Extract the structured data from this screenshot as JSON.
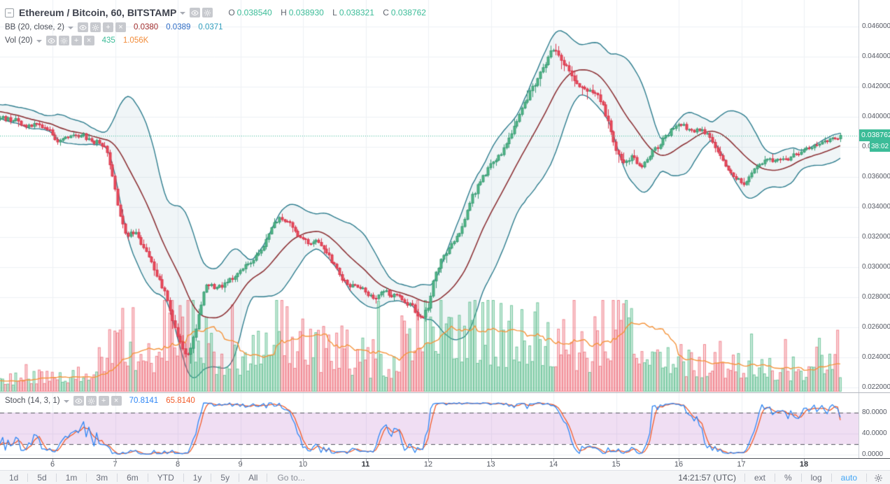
{
  "header": {
    "title": "Ethereum / Bitcoin, 60, BITSTAMP",
    "ohlc": {
      "o_label": "O",
      "o": "0.038540",
      "h_label": "H",
      "h": "0.038930",
      "l_label": "L",
      "l": "0.038321",
      "c_label": "C",
      "c": "0.038762"
    },
    "bb": {
      "name": "BB (20, close, 2)",
      "values": [
        {
          "text": "0.0380",
          "color": "#a02c2c"
        },
        {
          "text": "0.0389",
          "color": "#2d6bc4"
        },
        {
          "text": "0.0371",
          "color": "#2f9dbd"
        }
      ]
    },
    "vol": {
      "name": "Vol (20)",
      "values": [
        {
          "text": "435",
          "color": "#3cbc98"
        },
        {
          "text": "1.056K",
          "color": "#f28c3a"
        }
      ]
    }
  },
  "stoch_header": {
    "name": "Stoch (14, 3, 1)",
    "values": [
      {
        "text": "70.8141",
        "color": "#2e86f5"
      },
      {
        "text": "65.8140",
        "color": "#f25c2a"
      }
    ]
  },
  "axes": {
    "price_labels": [
      {
        "p": 0.046,
        "label": "0.046000"
      },
      {
        "p": 0.044,
        "label": "0.044000"
      },
      {
        "p": 0.042,
        "label": "0.042000"
      },
      {
        "p": 0.04,
        "label": "0.040000"
      },
      {
        "p": 0.038,
        "label": "0.038000"
      },
      {
        "p": 0.036,
        "label": "0.036000"
      },
      {
        "p": 0.034,
        "label": "0.034000"
      },
      {
        "p": 0.032,
        "label": "0.032000"
      },
      {
        "p": 0.03,
        "label": "0.030000"
      },
      {
        "p": 0.028,
        "label": "0.028000"
      },
      {
        "p": 0.026,
        "label": "0.026000"
      },
      {
        "p": 0.024,
        "label": "0.024000"
      },
      {
        "p": 0.022,
        "label": "0.022000"
      }
    ],
    "stoch_labels": [
      {
        "v": 80,
        "label": "80.0000"
      },
      {
        "v": 40,
        "label": "40.0000"
      },
      {
        "v": 0,
        "label": "0.0000"
      }
    ],
    "time_labels": [
      {
        "d": 6,
        "label": "6",
        "bold": false
      },
      {
        "d": 7,
        "label": "7",
        "bold": false
      },
      {
        "d": 8,
        "label": "8",
        "bold": false
      },
      {
        "d": 9,
        "label": "9",
        "bold": false
      },
      {
        "d": 10,
        "label": "10",
        "bold": false
      },
      {
        "d": 11,
        "label": "11",
        "bold": true
      },
      {
        "d": 12,
        "label": "12",
        "bold": false
      },
      {
        "d": 13,
        "label": "13",
        "bold": false
      },
      {
        "d": 14,
        "label": "14",
        "bold": false
      },
      {
        "d": 15,
        "label": "15",
        "bold": false
      },
      {
        "d": 16,
        "label": "16",
        "bold": false
      },
      {
        "d": 17,
        "label": "17",
        "bold": false
      },
      {
        "d": 18,
        "label": "18",
        "bold": true
      }
    ]
  },
  "badges": {
    "last_price": "0.038762",
    "countdown": "38:02"
  },
  "toolbar": {
    "ranges": [
      "1d",
      "5d",
      "1m",
      "3m",
      "6m",
      "YTD",
      "1y",
      "5y",
      "All"
    ],
    "goto": "Go to...",
    "clock": "14:21:57 (UTC)",
    "ext": "ext",
    "percent": "%",
    "log": "log",
    "auto": "auto"
  },
  "colors": {
    "up": "#53b987",
    "up_border": "#3b9b77",
    "down": "#eb4d5c",
    "down_border": "#d8394f",
    "bb_line": "#2f7e8f",
    "bb_fill": "rgba(47,126,143,0.075)",
    "bb_mid": "#8e3438",
    "vol_up_fill": "rgba(83,185,135,0.30)",
    "vol_up_line": "rgba(83,185,135,0.75)",
    "vol_down_fill": "rgba(235,77,92,0.24)",
    "vol_down_line": "rgba(235,77,92,0.62)",
    "vol_ma": "#f5953d",
    "grid": "#eef1f5",
    "price_line": "#3cbc98",
    "stoch_k": "#2e86f5",
    "stoch_d": "#f25c2a",
    "stoch_band": "rgba(186,104,200,0.22)",
    "stoch_dash": "#54575f"
  },
  "chart_data": {
    "type": "candlestick",
    "symbol": "Ethereum / Bitcoin",
    "exchange": "BITSTAMP",
    "interval_minutes": 60,
    "title": "Ethereum / Bitcoin, 60, BITSTAMP",
    "current_bar": {
      "open": 0.03854,
      "high": 0.03893,
      "low": 0.038321,
      "close": 0.038762
    },
    "last_price": 0.038762,
    "bollinger": {
      "length": 20,
      "source": "close",
      "mult": 2,
      "basis": 0.038,
      "upper": 0.0389,
      "lower": 0.0371
    },
    "volume": {
      "current": 435,
      "ma_length": 20,
      "ma_display": "1.056K",
      "ma_value": 1056
    },
    "stochastic": {
      "params": [
        14,
        3,
        1
      ],
      "k": 70.8141,
      "d": 65.814,
      "band": [
        20,
        80
      ]
    },
    "y_axis": {
      "min": 0.022,
      "max": 0.046,
      "tick": 0.002
    },
    "x_axis": {
      "days": [
        6,
        7,
        8,
        9,
        10,
        11,
        12,
        13,
        14,
        15,
        16,
        17,
        18
      ],
      "bold_days": [
        11,
        18
      ]
    },
    "stoch_axis": {
      "ticks": [
        80,
        40,
        0
      ]
    },
    "price_path": [
      [
        4.33,
        0.0406
      ],
      [
        4.7,
        0.0404
      ],
      [
        5.0,
        0.0402
      ],
      [
        5.17,
        0.0401
      ],
      [
        5.35,
        0.0398
      ],
      [
        5.55,
        0.0394
      ],
      [
        5.72,
        0.0396
      ],
      [
        5.9,
        0.0392
      ],
      [
        6.05,
        0.0386
      ],
      [
        6.25,
        0.0388
      ],
      [
        6.45,
        0.0387
      ],
      [
        6.65,
        0.0385
      ],
      [
        6.82,
        0.0383
      ],
      [
        6.95,
        0.0362
      ],
      [
        7.08,
        0.0333
      ],
      [
        7.2,
        0.032
      ],
      [
        7.33,
        0.0325
      ],
      [
        7.48,
        0.0311
      ],
      [
        7.63,
        0.0299
      ],
      [
        7.78,
        0.0284
      ],
      [
        7.93,
        0.0262
      ],
      [
        8.07,
        0.0246
      ],
      [
        8.17,
        0.024
      ],
      [
        8.3,
        0.0263
      ],
      [
        8.45,
        0.0289
      ],
      [
        8.6,
        0.0285
      ],
      [
        8.8,
        0.0291
      ],
      [
        9.0,
        0.0296
      ],
      [
        9.2,
        0.0304
      ],
      [
        9.35,
        0.0313
      ],
      [
        9.5,
        0.0327
      ],
      [
        9.62,
        0.0334
      ],
      [
        9.75,
        0.0329
      ],
      [
        9.9,
        0.0321
      ],
      [
        10.05,
        0.0316
      ],
      [
        10.25,
        0.0318
      ],
      [
        10.45,
        0.0305
      ],
      [
        10.6,
        0.0293
      ],
      [
        10.78,
        0.0288
      ],
      [
        10.95,
        0.0285
      ],
      [
        11.12,
        0.028
      ],
      [
        11.28,
        0.0284
      ],
      [
        11.45,
        0.0281
      ],
      [
        11.6,
        0.0277
      ],
      [
        11.75,
        0.0272
      ],
      [
        11.9,
        0.0266
      ],
      [
        12.0,
        0.0273
      ],
      [
        12.1,
        0.0296
      ],
      [
        12.22,
        0.0306
      ],
      [
        12.35,
        0.0313
      ],
      [
        12.5,
        0.0323
      ],
      [
        12.65,
        0.0341
      ],
      [
        12.8,
        0.0355
      ],
      [
        12.95,
        0.0365
      ],
      [
        13.1,
        0.0372
      ],
      [
        13.25,
        0.0383
      ],
      [
        13.4,
        0.0396
      ],
      [
        13.55,
        0.0411
      ],
      [
        13.7,
        0.0422
      ],
      [
        13.85,
        0.0433
      ],
      [
        13.98,
        0.0444
      ],
      [
        14.1,
        0.0439
      ],
      [
        14.25,
        0.0429
      ],
      [
        14.42,
        0.0421
      ],
      [
        14.58,
        0.0419
      ],
      [
        14.72,
        0.0413
      ],
      [
        14.86,
        0.0398
      ],
      [
        15.0,
        0.0379
      ],
      [
        15.12,
        0.0369
      ],
      [
        15.25,
        0.0374
      ],
      [
        15.4,
        0.0365
      ],
      [
        15.55,
        0.0375
      ],
      [
        15.7,
        0.0381
      ],
      [
        15.85,
        0.039
      ],
      [
        16.0,
        0.0397
      ],
      [
        16.15,
        0.0392
      ],
      [
        16.3,
        0.039
      ],
      [
        16.45,
        0.0387
      ],
      [
        16.6,
        0.0378
      ],
      [
        16.75,
        0.0368
      ],
      [
        16.9,
        0.0359
      ],
      [
        17.03,
        0.0354
      ],
      [
        17.17,
        0.0364
      ],
      [
        17.3,
        0.0369
      ],
      [
        17.45,
        0.0372
      ],
      [
        17.6,
        0.0369
      ],
      [
        17.75,
        0.0371
      ],
      [
        17.9,
        0.0375
      ],
      [
        18.05,
        0.0379
      ],
      [
        18.2,
        0.0382
      ],
      [
        18.35,
        0.0384
      ],
      [
        18.5,
        0.0386
      ],
      [
        18.62,
        0.038762
      ]
    ],
    "volume_envelope": [
      [
        4.33,
        400
      ],
      [
        5.2,
        420
      ],
      [
        5.6,
        480
      ],
      [
        6.0,
        550
      ],
      [
        6.5,
        650
      ],
      [
        6.9,
        1100
      ],
      [
        7.1,
        2100
      ],
      [
        7.3,
        1500
      ],
      [
        7.6,
        1150
      ],
      [
        7.9,
        2300
      ],
      [
        8.1,
        2700
      ],
      [
        8.3,
        1900
      ],
      [
        8.6,
        1100
      ],
      [
        9.0,
        950
      ],
      [
        9.3,
        1300
      ],
      [
        9.6,
        2100
      ],
      [
        9.8,
        1600
      ],
      [
        10.2,
        1150
      ],
      [
        10.6,
        1250
      ],
      [
        11.0,
        950
      ],
      [
        11.4,
        850
      ],
      [
        11.8,
        2100
      ],
      [
        12.0,
        2700
      ],
      [
        12.3,
        1900
      ],
      [
        12.6,
        2100
      ],
      [
        13.0,
        1800
      ],
      [
        13.3,
        1600
      ],
      [
        13.6,
        1900
      ],
      [
        14.0,
        1700
      ],
      [
        14.3,
        1500
      ],
      [
        14.6,
        1300
      ],
      [
        14.9,
        2100
      ],
      [
        15.1,
        2500
      ],
      [
        15.4,
        1500
      ],
      [
        15.8,
        1250
      ],
      [
        16.1,
        1050
      ],
      [
        16.5,
        850
      ],
      [
        16.9,
        950
      ],
      [
        17.2,
        750
      ],
      [
        17.6,
        650
      ],
      [
        18.0,
        750
      ],
      [
        18.3,
        1100
      ],
      [
        18.5,
        1500
      ],
      [
        18.62,
        600
      ]
    ],
    "gen": {
      "seed": 11,
      "t_start": 4.33,
      "t_end": 18.62,
      "step_hours": 1
    }
  }
}
